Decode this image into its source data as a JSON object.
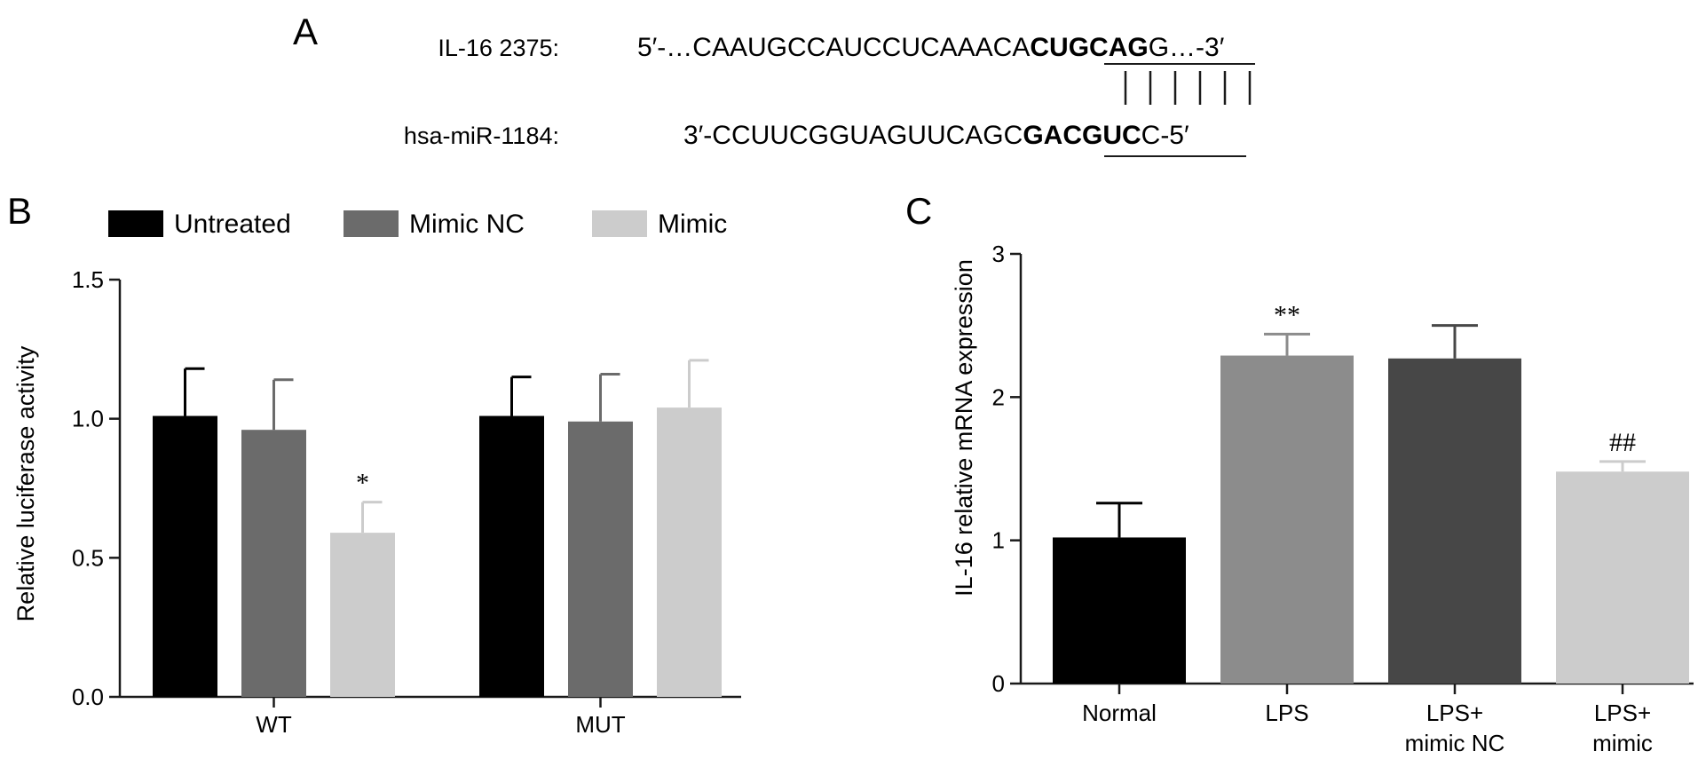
{
  "panel_a": {
    "label": "A",
    "rows": [
      {
        "name": "IL-16 2375:",
        "prefix": "5′-…CAAUGCCAUCCUCAAACA",
        "seed": "CUGCAG",
        "suffix": "G…-3′"
      },
      {
        "name": "hsa-miR-1184:",
        "prefix": "3′-CCUUCGGUAGUUCAGC",
        "seed": "GACGUC",
        "suffix": "C-5′"
      }
    ]
  },
  "chart_data": [
    {
      "panel": "B",
      "type": "bar",
      "ylabel": "Relative luciferase activity",
      "ylim": [
        0,
        1.5
      ],
      "yticks": [
        "0.0",
        "0.5",
        "1.0",
        "1.5"
      ],
      "categories": [
        "WT",
        "MUT"
      ],
      "legend": "top",
      "series": [
        {
          "name": "Untreated",
          "color": "#000000",
          "values": [
            1.01,
            1.01
          ],
          "errors": [
            0.17,
            0.14
          ],
          "annotations": [
            "",
            ""
          ]
        },
        {
          "name": "Mimic NC",
          "color": "#6b6b6b",
          "values": [
            0.96,
            0.99
          ],
          "errors": [
            0.18,
            0.17
          ],
          "annotations": [
            "",
            ""
          ]
        },
        {
          "name": "Mimic",
          "color": "#cccccc",
          "values": [
            0.59,
            1.04
          ],
          "errors": [
            0.11,
            0.17
          ],
          "annotations": [
            "*",
            ""
          ]
        }
      ]
    },
    {
      "panel": "C",
      "type": "bar",
      "ylabel": "IL-16 relative mRNA expression",
      "ylim": [
        0,
        3
      ],
      "yticks": [
        "0",
        "1",
        "2",
        "3"
      ],
      "categories": [
        [
          "Normal"
        ],
        [
          "LPS"
        ],
        [
          "LPS+",
          "mimic NC"
        ],
        [
          "LPS+",
          "mimic"
        ]
      ],
      "values": [
        1.02,
        2.29,
        2.27,
        1.48
      ],
      "errors": [
        0.24,
        0.15,
        0.23,
        0.07
      ],
      "colors": [
        "#000000",
        "#8c8c8c",
        "#474747",
        "#cccccc"
      ],
      "annotations": [
        "",
        "**",
        "",
        "##"
      ]
    }
  ]
}
